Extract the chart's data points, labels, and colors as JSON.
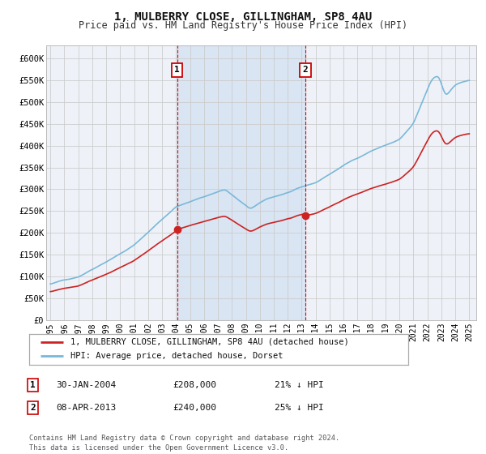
{
  "title": "1, MULBERRY CLOSE, GILLINGHAM, SP8 4AU",
  "subtitle": "Price paid vs. HM Land Registry's House Price Index (HPI)",
  "legend_line1": "1, MULBERRY CLOSE, GILLINGHAM, SP8 4AU (detached house)",
  "legend_line2": "HPI: Average price, detached house, Dorset",
  "footer1": "Contains HM Land Registry data © Crown copyright and database right 2024.",
  "footer2": "This data is licensed under the Open Government Licence v3.0.",
  "annotation1": {
    "label": "1",
    "date": "30-JAN-2004",
    "price": "£208,000",
    "hpi": "21% ↓ HPI"
  },
  "annotation2": {
    "label": "2",
    "date": "08-APR-2013",
    "price": "£240,000",
    "hpi": "25% ↓ HPI"
  },
  "y_ticks": [
    0,
    50000,
    100000,
    150000,
    200000,
    250000,
    300000,
    350000,
    400000,
    450000,
    500000,
    550000,
    600000
  ],
  "y_tick_labels": [
    "£0",
    "£50K",
    "£100K",
    "£150K",
    "£200K",
    "£250K",
    "£300K",
    "£350K",
    "£400K",
    "£450K",
    "£500K",
    "£550K",
    "£600K"
  ],
  "ylim": [
    0,
    630000
  ],
  "xlim": [
    1994.7,
    2025.5
  ],
  "x_start_year": 1995,
  "x_end_year": 2025,
  "vline1_x": 2004.08,
  "vline2_x": 2013.27,
  "sale1_x": 2004.08,
  "sale1_y": 208000,
  "sale2_x": 2013.27,
  "sale2_y": 240000,
  "hpi_color": "#7ab8d9",
  "price_color": "#cc2222",
  "grid_color": "#cccccc",
  "bg_color": "#ffffff",
  "plot_bg_color": "#eef2f8",
  "vline_color": "#dd0000",
  "shade_color": "#ccddf0",
  "annotation_bg": "#ffffff",
  "annotation_border": "#cc0000"
}
